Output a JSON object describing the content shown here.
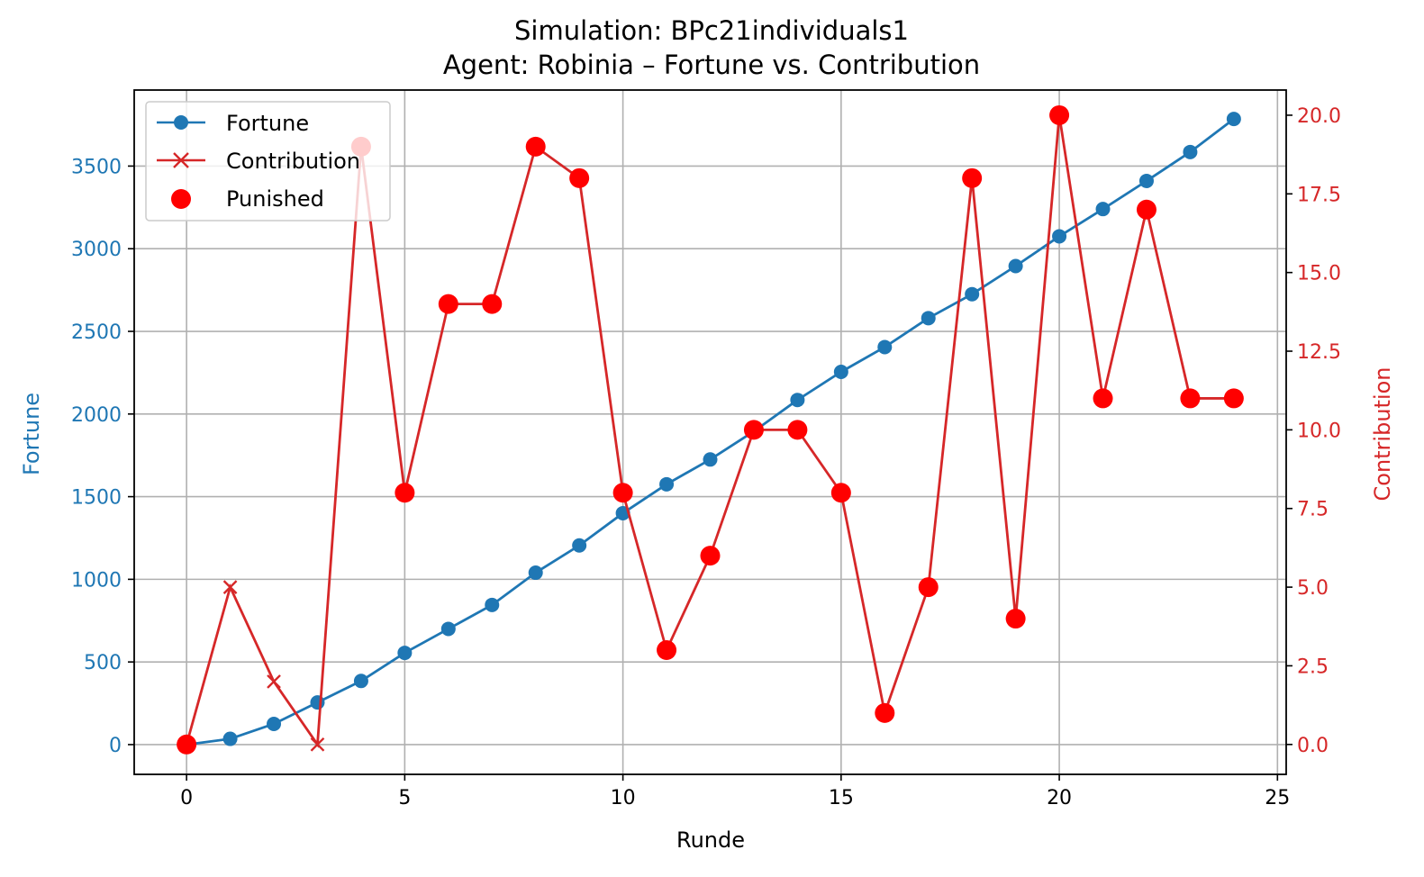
{
  "chart_data": {
    "type": "line",
    "title": "Simulation: BPc21individuals1",
    "subtitle": "Agent: Robinia – Fortune vs. Contribution",
    "xlabel": "Runde",
    "ylabel_left": "Fortune",
    "ylabel_right": "Contribution",
    "xlim": [
      -1.2,
      25.2
    ],
    "ylim_left": [
      -180,
      3960
    ],
    "ylim_right": [
      -0.95,
      20.8
    ],
    "x_ticks": [
      0,
      5,
      10,
      15,
      20,
      25
    ],
    "y_left_ticks": [
      0,
      500,
      1000,
      1500,
      2000,
      2500,
      3000,
      3500
    ],
    "y_right_ticks": [
      "0.0",
      "2.5",
      "5.0",
      "7.5",
      "10.0",
      "12.5",
      "15.0",
      "17.5",
      "20.0"
    ],
    "grid": true,
    "legend_position": "top-left",
    "colors": {
      "fortune": "#1f77b4",
      "contribution": "#d62728",
      "punished": "#ff0000"
    },
    "x": [
      0,
      1,
      2,
      3,
      4,
      5,
      6,
      7,
      8,
      9,
      10,
      11,
      12,
      13,
      14,
      15,
      16,
      17,
      18,
      19,
      20,
      21,
      22,
      23,
      24
    ],
    "series": [
      {
        "name": "Fortune",
        "axis": "left",
        "marker": "circle",
        "values": [
          0,
          35,
          125,
          255,
          385,
          555,
          700,
          845,
          1040,
          1205,
          1400,
          1575,
          1725,
          1895,
          2085,
          2255,
          2405,
          2580,
          2725,
          2895,
          3075,
          3240,
          3410,
          3585,
          3785
        ]
      },
      {
        "name": "Contribution",
        "axis": "right",
        "marker": "x",
        "values": [
          0,
          5,
          2,
          0,
          19,
          8,
          14,
          14,
          19,
          18,
          8,
          3,
          6,
          10,
          10,
          8,
          1,
          5,
          18,
          4,
          20,
          11,
          17,
          11,
          11
        ]
      }
    ],
    "punished": {
      "name": "Punished",
      "axis": "right",
      "x": [
        0,
        4,
        5,
        6,
        7,
        8,
        9,
        10,
        11,
        12,
        13,
        14,
        15,
        16,
        17,
        18,
        19,
        20,
        21,
        22,
        23,
        24
      ],
      "values": [
        0,
        19,
        8,
        14,
        14,
        19,
        18,
        8,
        3,
        6,
        10,
        10,
        8,
        1,
        5,
        18,
        4,
        20,
        11,
        17,
        11,
        11
      ]
    }
  }
}
